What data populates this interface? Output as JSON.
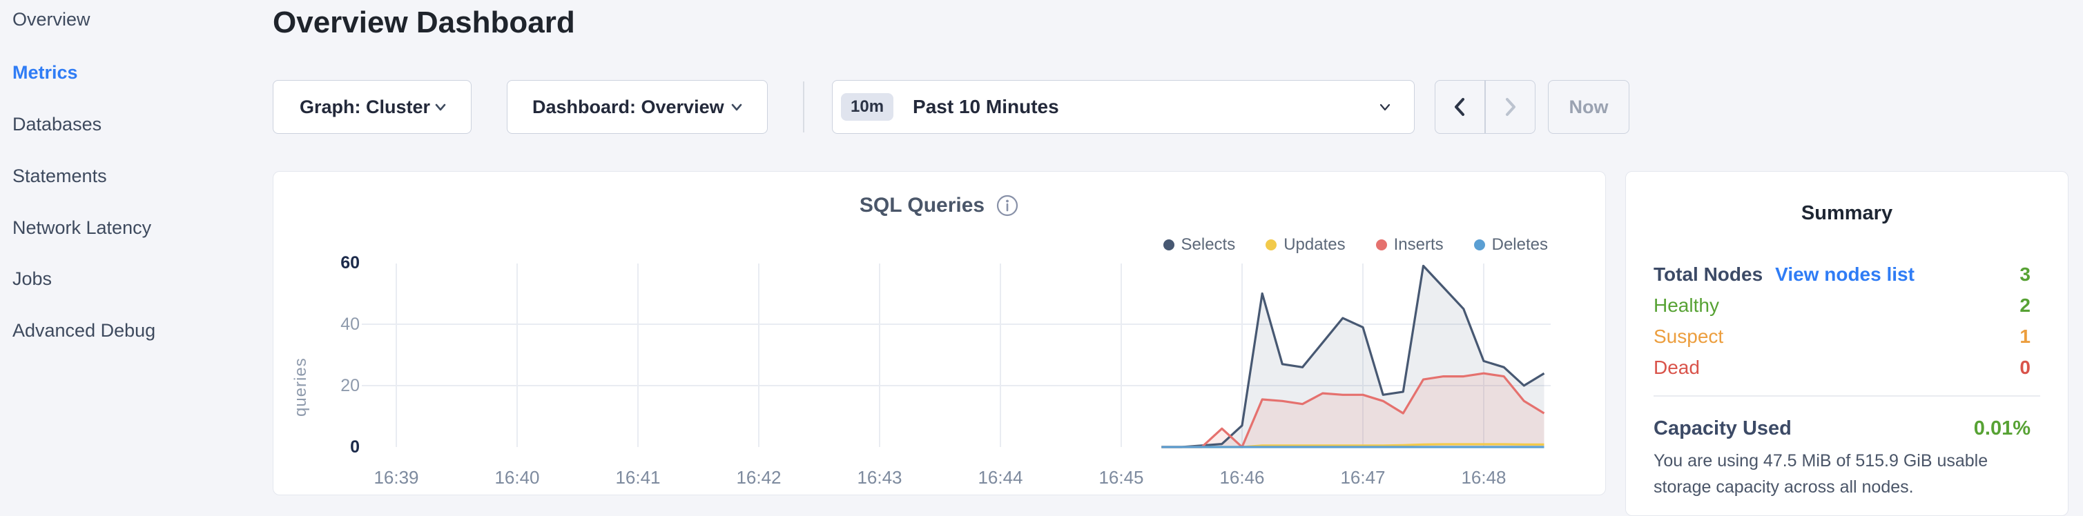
{
  "sidebar": {
    "items": [
      {
        "label": "Overview",
        "active": false
      },
      {
        "label": "Metrics",
        "active": true
      },
      {
        "label": "Databases",
        "active": false
      },
      {
        "label": "Statements",
        "active": false
      },
      {
        "label": "Network Latency",
        "active": false
      },
      {
        "label": "Jobs",
        "active": false
      },
      {
        "label": "Advanced Debug",
        "active": false
      }
    ]
  },
  "header": {
    "title": "Overview Dashboard"
  },
  "toolbar": {
    "graph_dropdown": {
      "label": "Graph: Cluster"
    },
    "dashboard_dropdown": {
      "label": "Dashboard: Overview"
    },
    "time_range": {
      "badge": "10m",
      "label": "Past 10 Minutes"
    },
    "now_button": "Now"
  },
  "chart_data": {
    "type": "line",
    "title": "SQL Queries",
    "ylabel": "queries",
    "legend_position": "top-right",
    "grid": true,
    "x_ticks": [
      "16:39",
      "16:40",
      "16:41",
      "16:42",
      "16:43",
      "16:44",
      "16:45",
      "16:46",
      "16:47",
      "16:48"
    ],
    "y_ticks": [
      0,
      20,
      40,
      60
    ],
    "ylim": [
      0,
      60
    ],
    "sample_times": [
      "16:45:20",
      "16:45:30",
      "16:45:40",
      "16:45:50",
      "16:46:00",
      "16:46:10",
      "16:46:20",
      "16:46:30",
      "16:46:40",
      "16:46:50",
      "16:47:00",
      "16:47:10",
      "16:47:20",
      "16:47:30",
      "16:47:40",
      "16:47:50",
      "16:48:00",
      "16:48:10",
      "16:48:20",
      "16:48:30"
    ],
    "series": [
      {
        "name": "Selects",
        "color": "#475872",
        "fill": "rgba(71,88,114,0.10)",
        "values": [
          0,
          0,
          0.5,
          1,
          7,
          50,
          27,
          26,
          34,
          42,
          39,
          17,
          18,
          59,
          52,
          45,
          28,
          26,
          20,
          24
        ]
      },
      {
        "name": "Updates",
        "color": "#f2ca4b",
        "fill": null,
        "values": [
          0,
          0,
          0,
          0,
          0,
          0.5,
          0.5,
          0.5,
          0.5,
          0.5,
          0.5,
          0.5,
          0.6,
          0.8,
          0.9,
          0.9,
          0.9,
          0.9,
          0.8,
          0.8
        ]
      },
      {
        "name": "Inserts",
        "color": "#e5716e",
        "fill": "rgba(229,113,110,0.13)",
        "values": [
          0,
          0,
          0,
          6,
          0,
          15.5,
          15,
          14,
          17.5,
          17,
          17,
          15,
          11,
          22,
          23,
          23,
          24,
          23,
          15,
          11
        ]
      },
      {
        "name": "Deletes",
        "color": "#5b9fd3",
        "fill": null,
        "values": [
          0,
          0,
          0,
          0,
          0,
          0,
          0,
          0,
          0,
          0,
          0,
          0,
          0,
          0,
          0,
          0,
          0,
          0,
          0,
          0
        ]
      }
    ]
  },
  "summary": {
    "title": "Summary",
    "rows": [
      {
        "label": "Total Nodes",
        "link": "View nodes list",
        "value": "3",
        "label_tone": "strong",
        "value_tone": "green"
      },
      {
        "label": "Healthy",
        "link": null,
        "value": "2",
        "label_tone": "green",
        "value_tone": "green"
      },
      {
        "label": "Suspect",
        "link": null,
        "value": "1",
        "label_tone": "orange",
        "value_tone": "orange"
      },
      {
        "label": "Dead",
        "link": null,
        "value": "0",
        "label_tone": "red",
        "value_tone": "red"
      }
    ],
    "capacity": {
      "label": "Capacity Used",
      "value": "0.01%",
      "description": "You are using 47.5 MiB of 515.9 GiB usable storage capacity across all nodes."
    }
  },
  "colors": {
    "accent_blue": "#2f7cf5",
    "status_green": "#57a234",
    "status_orange": "#ec9e3e",
    "status_red": "#d9534a",
    "background": "#f4f5f9",
    "grid": "#e9ecf2"
  }
}
